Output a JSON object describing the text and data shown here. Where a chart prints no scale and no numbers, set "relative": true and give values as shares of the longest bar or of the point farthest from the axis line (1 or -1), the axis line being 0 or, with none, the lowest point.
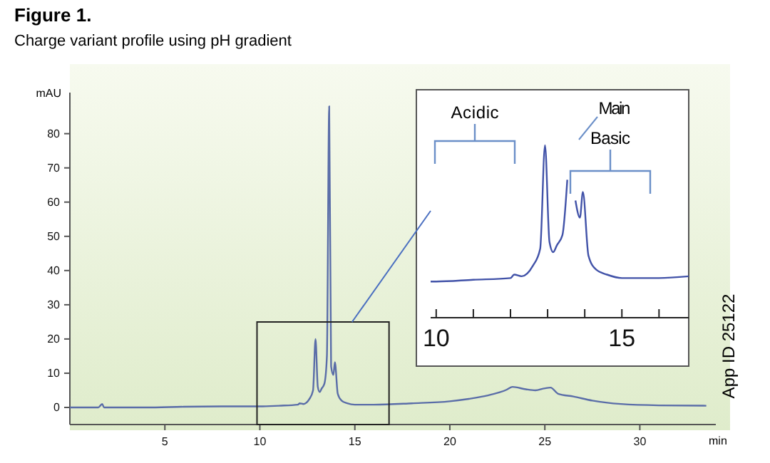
{
  "chart_data": [
    {
      "type": "line",
      "title": "Figure 1.",
      "subtitle": "Charge variant profile using pH gradient",
      "xlabel": "min",
      "ylabel": "mAU",
      "xlim": [
        0,
        34
      ],
      "ylim": [
        -5,
        92
      ],
      "xticks": [
        5,
        10,
        15,
        20,
        25,
        30
      ],
      "yticks": [
        0,
        10,
        20,
        30,
        40,
        50,
        60,
        70,
        80
      ],
      "annotations": [
        "App ID 25122"
      ],
      "series": [
        {
          "color": "#5a6da8",
          "x": [
            0,
            0.5,
            1.5,
            1.7,
            1.8,
            2,
            4,
            6,
            8,
            10,
            11,
            12,
            12.1,
            12.3,
            12.6,
            12.8,
            12.93,
            13.05,
            13.15,
            13.25,
            13.4,
            13.53,
            13.65,
            13.75,
            13.87,
            13.95,
            14.1,
            14.3,
            14.6,
            15,
            16,
            18,
            20,
            21,
            22,
            23,
            23.3,
            24,
            24.5,
            25,
            25.3,
            25.7,
            26.5,
            27.5,
            29,
            31,
            33.5
          ],
          "values": [
            0,
            0,
            0,
            1,
            0,
            0,
            0,
            0.2,
            0.3,
            0.3,
            0.5,
            0.8,
            1.2,
            1,
            2.4,
            5,
            20,
            6,
            4.5,
            5.5,
            7,
            15,
            88,
            12,
            9.5,
            13.2,
            4,
            2,
            1.2,
            0.8,
            0.8,
            1.2,
            1.8,
            2.5,
            3.5,
            5.2,
            6,
            5.3,
            5,
            5.6,
            5.8,
            4,
            3.2,
            2,
            1,
            0.6,
            0.5
          ]
        }
      ]
    },
    {
      "type": "line",
      "relative": true,
      "xlim": [
        9.85,
        16.8
      ],
      "xticks": [
        10,
        {
          "value": 11,
          "label": null
        },
        {
          "value": 12,
          "label": null
        },
        {
          "value": 13,
          "label": null
        },
        {
          "value": 14,
          "label": null
        },
        15,
        {
          "value": 16,
          "label": null
        }
      ],
      "tick_labels": "x",
      "annotations": [
        "Acidic",
        "Main",
        "Basic"
      ],
      "series": [
        {
          "color": "#4152a8",
          "x": [
            9.85,
            10,
            11,
            12,
            12.1,
            12.3,
            12.6,
            12.8,
            12.93,
            13.05,
            13.15,
            13.25,
            13.4,
            13.53,
            13.65,
            13.75,
            13.87,
            13.95,
            14.1,
            14.3,
            14.6,
            15,
            16,
            16.8
          ],
          "values": [
            0.21,
            0.21,
            0.22,
            0.23,
            0.25,
            0.24,
            0.3,
            0.4,
            1,
            0.44,
            0.38,
            0.42,
            0.48,
            0.8,
            null,
            0.68,
            0.58,
            0.73,
            0.36,
            0.28,
            0.25,
            0.23,
            0.23,
            0.24
          ]
        }
      ]
    }
  ]
}
